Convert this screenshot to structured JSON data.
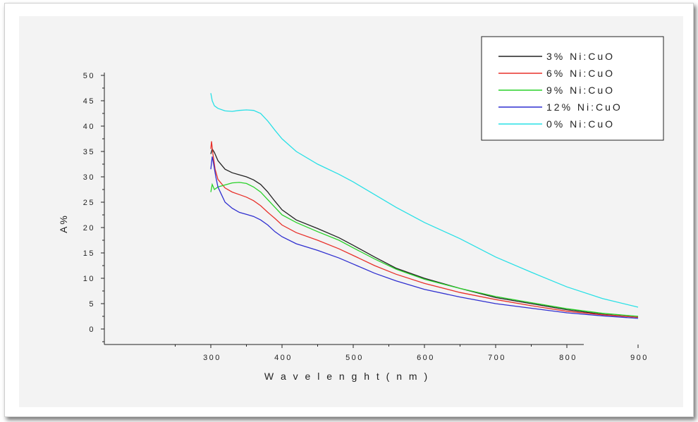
{
  "chart_data": {
    "type": "line",
    "title": "",
    "xlabel": "W a v e  l e n g h t ( n m )",
    "ylabel": "A%",
    "xlim": [
      250,
      930
    ],
    "ylim": [
      -3,
      50
    ],
    "x_ticks": [
      300,
      400,
      500,
      600,
      700,
      800,
      900
    ],
    "y_ticks": [
      0,
      5,
      10,
      15,
      20,
      25,
      30,
      35,
      40,
      45,
      50
    ],
    "grid": false,
    "legend_position": "top-right",
    "background_color": "#f3f3f3",
    "series": [
      {
        "name": "3% Ni:CuO",
        "color": "#222222",
        "points": [
          [
            300,
            34.5
          ],
          [
            302,
            35.5
          ],
          [
            305,
            34.8
          ],
          [
            310,
            33.2
          ],
          [
            320,
            31.5
          ],
          [
            330,
            30.8
          ],
          [
            340,
            30.4
          ],
          [
            350,
            30.0
          ],
          [
            360,
            29.4
          ],
          [
            370,
            28.5
          ],
          [
            380,
            27.0
          ],
          [
            390,
            25.2
          ],
          [
            400,
            23.5
          ],
          [
            420,
            21.5
          ],
          [
            450,
            19.8
          ],
          [
            480,
            18.0
          ],
          [
            500,
            16.5
          ],
          [
            530,
            14.2
          ],
          [
            560,
            12.0
          ],
          [
            600,
            10.0
          ],
          [
            650,
            8.0
          ],
          [
            700,
            6.2
          ],
          [
            750,
            5.0
          ],
          [
            800,
            3.8
          ],
          [
            850,
            2.9
          ],
          [
            900,
            2.3
          ]
        ]
      },
      {
        "name": "6% Ni:CuO",
        "color": "#e8302a",
        "points": [
          [
            300,
            35.5
          ],
          [
            301,
            37.0
          ],
          [
            303,
            34.5
          ],
          [
            306,
            31.5
          ],
          [
            310,
            29.5
          ],
          [
            320,
            27.8
          ],
          [
            330,
            27.0
          ],
          [
            340,
            26.5
          ],
          [
            350,
            26.0
          ],
          [
            360,
            25.3
          ],
          [
            370,
            24.3
          ],
          [
            380,
            23.0
          ],
          [
            390,
            21.8
          ],
          [
            400,
            20.5
          ],
          [
            420,
            19.0
          ],
          [
            450,
            17.5
          ],
          [
            480,
            15.8
          ],
          [
            500,
            14.5
          ],
          [
            530,
            12.5
          ],
          [
            560,
            10.8
          ],
          [
            600,
            9.0
          ],
          [
            650,
            7.2
          ],
          [
            700,
            5.8
          ],
          [
            750,
            4.6
          ],
          [
            800,
            3.5
          ],
          [
            850,
            2.8
          ],
          [
            900,
            2.3
          ]
        ]
      },
      {
        "name": "9% Ni:CuO",
        "color": "#28d228",
        "points": [
          [
            300,
            27.0
          ],
          [
            302,
            28.5
          ],
          [
            305,
            27.5
          ],
          [
            310,
            28.0
          ],
          [
            320,
            28.4
          ],
          [
            330,
            28.8
          ],
          [
            340,
            28.9
          ],
          [
            350,
            28.7
          ],
          [
            360,
            28.0
          ],
          [
            370,
            27.0
          ],
          [
            380,
            25.5
          ],
          [
            390,
            24.0
          ],
          [
            400,
            22.5
          ],
          [
            420,
            21.0
          ],
          [
            450,
            19.2
          ],
          [
            480,
            17.5
          ],
          [
            500,
            16.0
          ],
          [
            530,
            13.8
          ],
          [
            560,
            11.8
          ],
          [
            600,
            9.8
          ],
          [
            650,
            8.0
          ],
          [
            700,
            6.4
          ],
          [
            750,
            5.2
          ],
          [
            800,
            4.0
          ],
          [
            850,
            3.1
          ],
          [
            900,
            2.5
          ]
        ]
      },
      {
        "name": "12% Ni:CuO",
        "color": "#2f2fd0",
        "points": [
          [
            300,
            31.5
          ],
          [
            302,
            34.0
          ],
          [
            304,
            32.5
          ],
          [
            307,
            30.0
          ],
          [
            310,
            28.0
          ],
          [
            315,
            26.5
          ],
          [
            320,
            25.0
          ],
          [
            330,
            23.8
          ],
          [
            340,
            23.0
          ],
          [
            350,
            22.6
          ],
          [
            360,
            22.2
          ],
          [
            370,
            21.5
          ],
          [
            380,
            20.5
          ],
          [
            390,
            19.2
          ],
          [
            400,
            18.2
          ],
          [
            420,
            16.8
          ],
          [
            450,
            15.5
          ],
          [
            480,
            14.0
          ],
          [
            500,
            12.8
          ],
          [
            530,
            11.0
          ],
          [
            560,
            9.5
          ],
          [
            600,
            7.8
          ],
          [
            650,
            6.3
          ],
          [
            700,
            5.0
          ],
          [
            750,
            4.1
          ],
          [
            800,
            3.2
          ],
          [
            850,
            2.6
          ],
          [
            900,
            2.1
          ]
        ]
      },
      {
        "name": "0% Ni:CuO",
        "color": "#28e0e6",
        "points": [
          [
            300,
            46.5
          ],
          [
            302,
            45.0
          ],
          [
            305,
            44.0
          ],
          [
            310,
            43.5
          ],
          [
            320,
            43.0
          ],
          [
            330,
            42.9
          ],
          [
            340,
            43.1
          ],
          [
            350,
            43.2
          ],
          [
            360,
            43.1
          ],
          [
            370,
            42.5
          ],
          [
            380,
            41.0
          ],
          [
            390,
            39.2
          ],
          [
            400,
            37.5
          ],
          [
            420,
            35.0
          ],
          [
            450,
            32.5
          ],
          [
            480,
            30.5
          ],
          [
            500,
            29.0
          ],
          [
            530,
            26.5
          ],
          [
            560,
            24.0
          ],
          [
            600,
            21.0
          ],
          [
            650,
            17.8
          ],
          [
            700,
            14.2
          ],
          [
            750,
            11.2
          ],
          [
            800,
            8.3
          ],
          [
            850,
            6.0
          ],
          [
            900,
            4.3
          ]
        ]
      }
    ]
  }
}
